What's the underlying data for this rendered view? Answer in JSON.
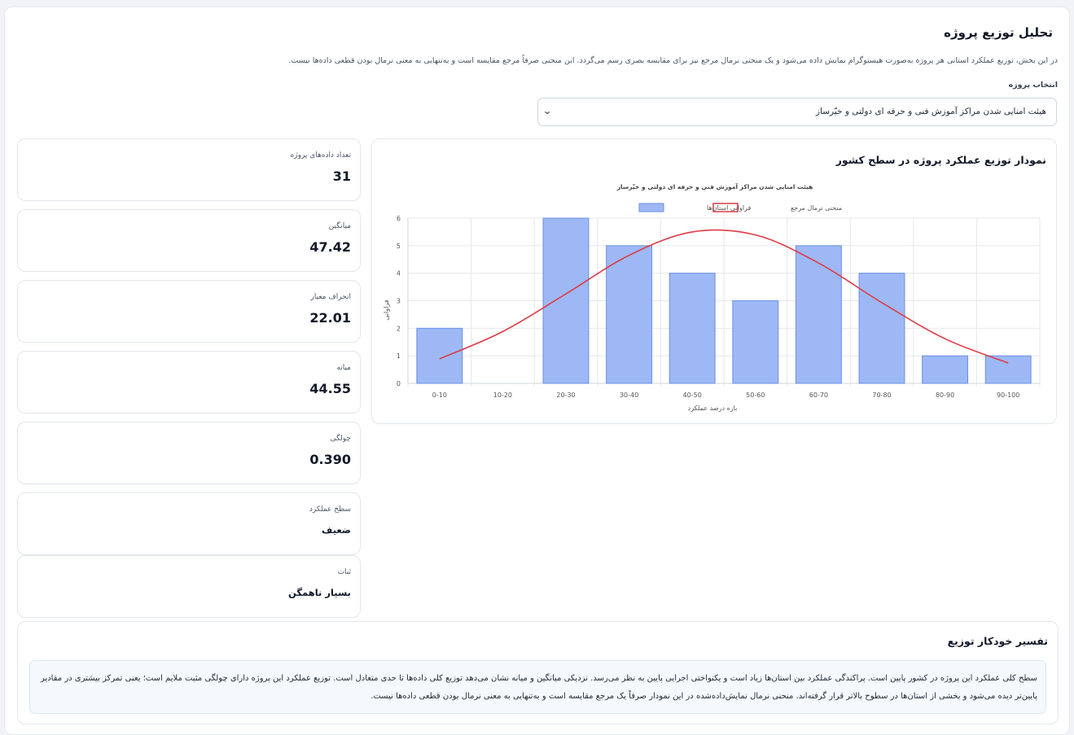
{
  "header": {
    "title": "تحلیل توزیع پروژه",
    "description": "در این بخش، توزیع عملکرد استانی هر پروژه به‌صورت هیستوگرام نمایش داده می‌شود و یک منحنی نرمال مرجع نیز برای مقایسه بصری رسم می‌گردد. این منحنی صرفاً مرجع مقایسه است و به‌تنهایی به معنی نرمال بودن قطعی داده‌ها نیست."
  },
  "project_select": {
    "label": "انتخاب پروژه",
    "selected": "هیئت امنایی شدن مراکز آموزش فنی و حرفه ای دولتی و خیّرساز"
  },
  "chart_card": {
    "title": "نمودار توزیع عملکرد پروژه در سطح کشور"
  },
  "chart_data": {
    "type": "bar",
    "title": "هیئت امنایی شدن مراکز آموزش فنی و حرفه ای دولتی و خیّرساز",
    "xlabel": "بازه درصد عملکرد",
    "ylabel": "فراوانی",
    "categories": [
      "0-10",
      "10-20",
      "20-30",
      "30-40",
      "40-50",
      "50-60",
      "60-70",
      "70-80",
      "80-90",
      "90-100"
    ],
    "series": [
      {
        "name": "فراوانی استان‌ها",
        "type": "bar",
        "values": [
          2,
          0,
          6,
          5,
          4,
          3,
          5,
          4,
          1,
          1
        ],
        "color": "#9db8f5"
      },
      {
        "name": "منحنی نرمال مرجع",
        "type": "line",
        "values": [
          0.89,
          1.88,
          3.25,
          4.65,
          5.5,
          5.39,
          4.37,
          2.93,
          1.62,
          0.74
        ],
        "color": "#dc3c45"
      }
    ],
    "ylim": [
      0,
      6
    ],
    "yticks": [
      0,
      1,
      2,
      3,
      4,
      5,
      6
    ],
    "grid": true,
    "legend_position": "top"
  },
  "stats": [
    {
      "label": "تعداد داده‌های پروژه",
      "value": "31"
    },
    {
      "label": "میانگین",
      "value": "47.42"
    },
    {
      "label": "انحراف معیار",
      "value": "22.01"
    },
    {
      "label": "میانه",
      "value": "44.55"
    },
    {
      "label": "چولگی",
      "value": "0.390"
    },
    {
      "label": "سطح عملکرد",
      "value": "ضعیف"
    },
    {
      "label": "ثبات",
      "value": "بسیار ناهمگن"
    }
  ],
  "interpretation": {
    "title": "تفسیر خودکار توزیع",
    "text": "سطح کلی عملکرد این پروژه در کشور پایین است. پراکندگی عملکرد بین استان‌ها زیاد است و یکنواختی اجرایی پایین به نظر می‌رسد. نزدیکی میانگین و میانه نشان می‌دهد توزیع کلی داده‌ها تا حدی متعادل است. توزیع عملکرد این پروژه دارای چولگی مثبت ملایم است؛ یعنی تمرکز بیشتری در مقادیر پایین‌تر دیده می‌شود و بخشی از استان‌ها در سطوح بالاتر قرار گرفته‌اند. منحنی نرمال نمایش‌داده‌شده در این نمودار صرفاً یک مرجع مقایسه است و به‌تنهایی به معنی نرمال بودن قطعی داده‌ها نیست."
  }
}
